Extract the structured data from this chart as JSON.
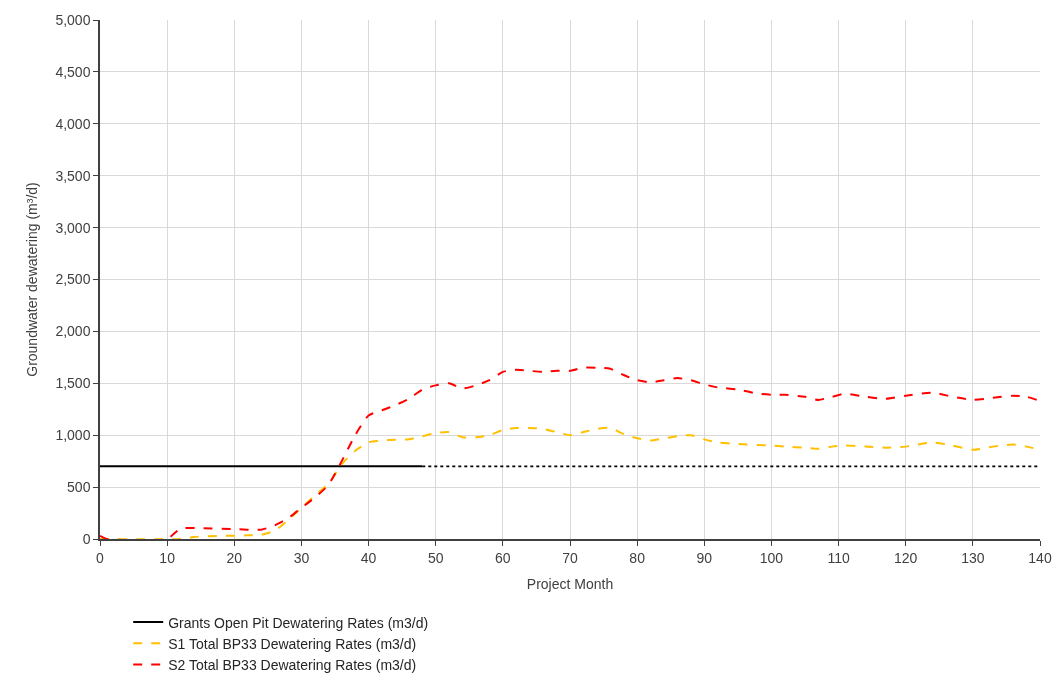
{
  "chart_data": {
    "type": "line",
    "xlabel": "Project Month",
    "ylabel": "Groundwater dewatering (m³/d)",
    "xlim": [
      0,
      140
    ],
    "xticks": [
      0,
      10,
      20,
      30,
      40,
      50,
      60,
      70,
      80,
      90,
      100,
      110,
      120,
      130,
      140
    ],
    "ylim": [
      0,
      5000
    ],
    "yticks": [
      {
        "value": 0,
        "label": "0"
      },
      {
        "value": 500,
        "label": "500"
      },
      {
        "value": 1000,
        "label": "1,000"
      },
      {
        "value": 1500,
        "label": "1,500"
      },
      {
        "value": 2000,
        "label": "2,000"
      },
      {
        "value": 2500,
        "label": "2,500"
      },
      {
        "value": 3000,
        "label": "3,000"
      },
      {
        "value": 3500,
        "label": "3,500"
      },
      {
        "value": 4000,
        "label": "4,000"
      },
      {
        "value": 4500,
        "label": "4,500"
      },
      {
        "value": 5000,
        "label": "5,000"
      }
    ],
    "grid": true,
    "legend": "bottom",
    "marker": "none",
    "series": [
      {
        "name": "Grants Open Pit Dewatering Rates (m3/d)",
        "color": "#000000",
        "line_style": "solid",
        "x": [
          0,
          48
        ],
        "values": [
          700,
          700
        ]
      },
      {
        "color": "#000000",
        "line_style": "dotted",
        "x": [
          48,
          140
        ],
        "values": [
          700,
          700
        ]
      },
      {
        "name": "S1 Total BP33 Dewatering Rates (m3/d)",
        "color": "#ffc000",
        "line_style": "dashed",
        "x": [
          0,
          12,
          14,
          18,
          22,
          24,
          26,
          28,
          30,
          32,
          34,
          36,
          38,
          40,
          42,
          44,
          46,
          48,
          50,
          52,
          54,
          56,
          58,
          60,
          62,
          64,
          66,
          68,
          70,
          72,
          74,
          76,
          78,
          80,
          82,
          84,
          86,
          88,
          90,
          92,
          95,
          100,
          102,
          105,
          107,
          109,
          111,
          114,
          117,
          120,
          124,
          127,
          130,
          133,
          136,
          138,
          140
        ],
        "values": [
          0,
          0,
          20,
          30,
          35,
          40,
          80,
          180,
          300,
          420,
          530,
          720,
          850,
          930,
          950,
          955,
          960,
          990,
          1020,
          1030,
          980,
          980,
          1000,
          1050,
          1070,
          1070,
          1060,
          1030,
          1000,
          1030,
          1060,
          1070,
          1010,
          970,
          950,
          970,
          990,
          1000,
          960,
          930,
          915,
          900,
          890,
          880,
          870,
          890,
          900,
          890,
          880,
          890,
          930,
          900,
          860,
          890,
          910,
          890,
          860
        ]
      },
      {
        "name": "S2 Total BP33 Dewatering Rates (m3/d)",
        "color": "#ff0000",
        "line_style": "dashed",
        "x": [
          0,
          1,
          10,
          11,
          12,
          15,
          20,
          24,
          26,
          28,
          30,
          32,
          34,
          36,
          38,
          40,
          42,
          44,
          46,
          48,
          50,
          52,
          54,
          56,
          58,
          60,
          62,
          64,
          66,
          68,
          70,
          72,
          74,
          76,
          78,
          80,
          82,
          84,
          86,
          88,
          90,
          92,
          95,
          98,
          100,
          102,
          105,
          107,
          109,
          111,
          114,
          117,
          120,
          124,
          127,
          130,
          133,
          136,
          138,
          140
        ],
        "values": [
          30,
          0,
          0,
          50,
          100,
          105,
          95,
          90,
          130,
          200,
          300,
          400,
          520,
          750,
          1000,
          1190,
          1240,
          1290,
          1350,
          1440,
          1480,
          1500,
          1450,
          1480,
          1530,
          1610,
          1630,
          1620,
          1610,
          1620,
          1620,
          1650,
          1650,
          1640,
          1580,
          1530,
          1510,
          1530,
          1550,
          1530,
          1490,
          1460,
          1440,
          1400,
          1390,
          1390,
          1370,
          1340,
          1370,
          1400,
          1370,
          1350,
          1380,
          1410,
          1370,
          1340,
          1360,
          1380,
          1370,
          1330
        ]
      }
    ]
  }
}
